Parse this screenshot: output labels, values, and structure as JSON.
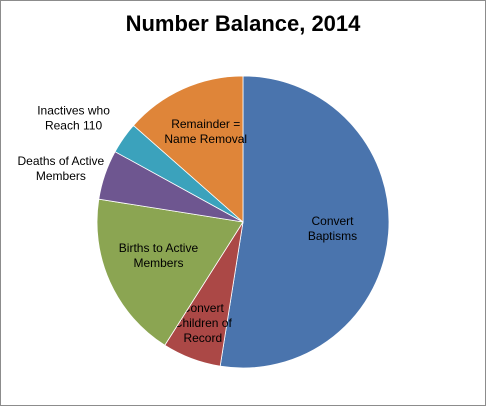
{
  "chart_data": {
    "type": "pie",
    "title": "Number Balance, 2014",
    "start_angle_deg": 0,
    "direction": "clockwise",
    "slices": [
      {
        "label": "Convert Baptisms",
        "lines": [
          "Convert",
          "Baptisms"
        ],
        "value": 52.5,
        "color": "#4a74ad"
      },
      {
        "label": "Convert Children of Record",
        "lines": [
          "Convert",
          "Children of",
          "Record"
        ],
        "value": 6.5,
        "color": "#ab4846"
      },
      {
        "label": "Births to Active Members",
        "lines": [
          "Births to Active",
          "Members"
        ],
        "value": 18.5,
        "color": "#8ba552"
      },
      {
        "label": "Deaths of Active Members",
        "lines": [
          "Deaths of Active",
          "Members"
        ],
        "value": 5.5,
        "color": "#6e5690"
      },
      {
        "label": "Inactives who Reach 110",
        "lines": [
          "Inactives who",
          "Reach 110"
        ],
        "value": 3.5,
        "color": "#3ba2bc"
      },
      {
        "label": "Remainder = Name Removal",
        "lines": [
          "Remainder =",
          "Name Removal"
        ],
        "value": 13.5,
        "color": "#df8539"
      }
    ]
  }
}
